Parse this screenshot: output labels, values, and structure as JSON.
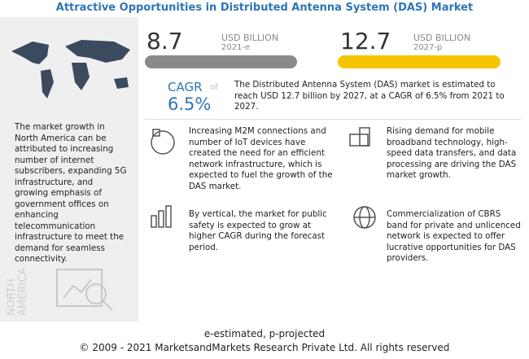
{
  "header": {
    "title": "Attractive Opportunities in Distributed Antenna System (DAS) Market"
  },
  "left_panel": {
    "text": "The market growth in North America can be attributed to increasing number of internet subscribers, expanding 5G infrastructure, and growing emphasis of government offices on enhancing telecommunication infrastructure to meet the demand for seamless connectivity.",
    "region": "NORTH AMERICA"
  },
  "stats": [
    {
      "value": "8.7",
      "unit": "USD BILLION",
      "year": "2021-e"
    },
    {
      "value": "12.7",
      "unit": "USD BILLION",
      "year": "2027-p"
    }
  ],
  "cagr": {
    "label": "CAGR",
    "of": "of",
    "value": "6.5%",
    "text": "The Distributed Antenna System (DAS) market is estimated to reach USD 12.7 billion by 2027, at a CAGR of 6.5% from 2021 to 2027."
  },
  "points": [
    "Increasing M2M connections and number of IoT devices have created the need for an efficient network infrastructure, which is expected to fuel the growth of the DAS market.",
    "Rising demand for mobile broadband technology, high-speed data transfers, and data processing are driving the DAS market growth.",
    "By vertical, the market for public safety is expected to grow at higher CAGR during the forecast period.",
    "Commercialization of CBRS band for private and unlicenced network is expected to offer lucrative opportunities for DAS providers."
  ],
  "footer": {
    "note": "e-estimated, p-projected",
    "copyright": "© 2009 - 2021 MarketsandMarkets Research Private Ltd. All rights reserved"
  }
}
